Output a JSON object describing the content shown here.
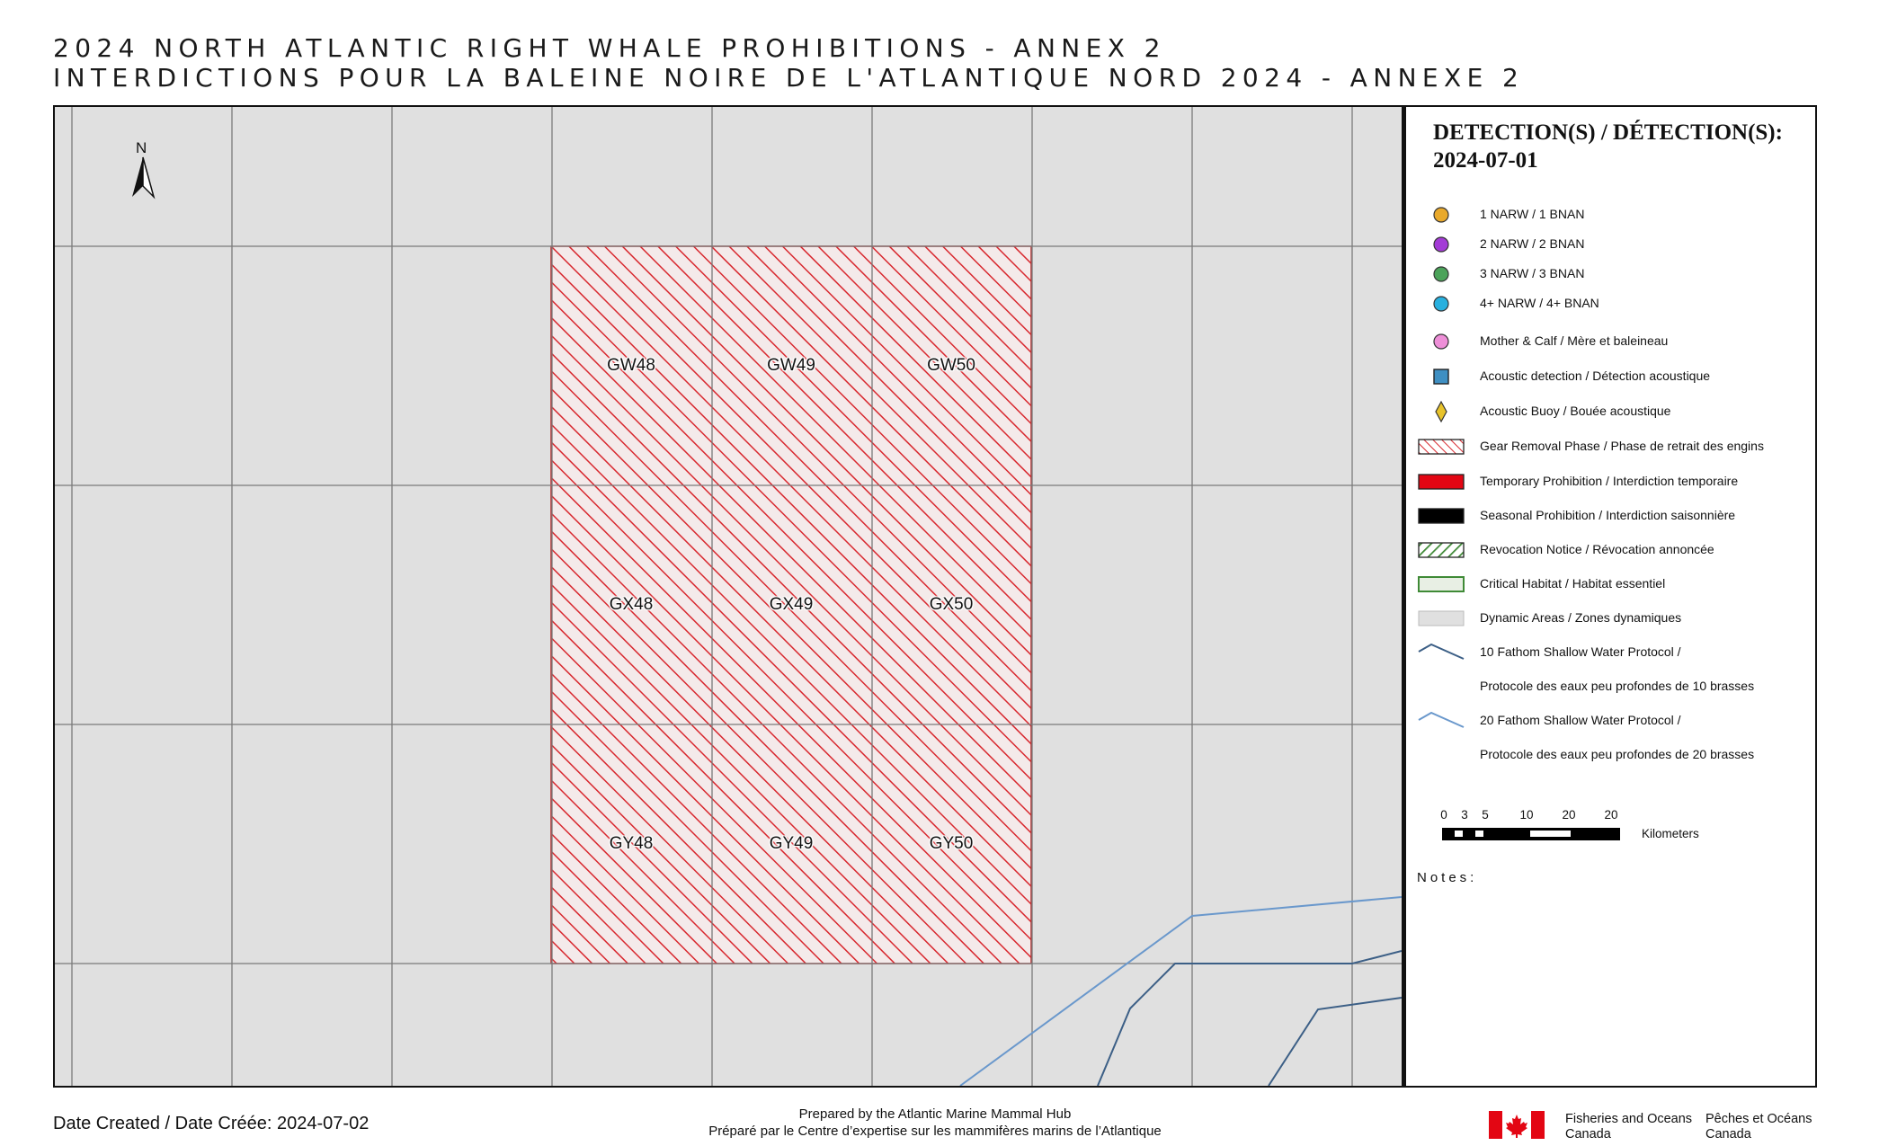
{
  "title": {
    "en": "2024 NORTH ATLANTIC RIGHT WHALE PROHIBITIONS - ANNEX 2",
    "fr": "INTERDICTIONS POUR LA BALEINE NOIRE DE L'ATLANTIQUE NORD 2024 - ANNEXE 2"
  },
  "map": {
    "north_label": "N",
    "grid_cells": [
      {
        "id": "GW48",
        "status": "gear-removal-phase"
      },
      {
        "id": "GW49",
        "status": "gear-removal-phase"
      },
      {
        "id": "GW50",
        "status": "gear-removal-phase"
      },
      {
        "id": "GX48",
        "status": "gear-removal-phase"
      },
      {
        "id": "GX49",
        "status": "gear-removal-phase"
      },
      {
        "id": "GX50",
        "status": "gear-removal-phase"
      },
      {
        "id": "GY48",
        "status": "gear-removal-phase"
      },
      {
        "id": "GY49",
        "status": "gear-removal-phase"
      },
      {
        "id": "GY50",
        "status": "gear-removal-phase"
      }
    ],
    "colors": {
      "background": "#e0e0e0",
      "grid_line": "#7a7a7a",
      "hatch_red": "#d8272e",
      "contour_10_fathom": "#3c5f86",
      "contour_20_fathom": "#6a98cc"
    }
  },
  "legend": {
    "title_line1": "DETECTION(S) / DÉTECTION(S):",
    "title_line2": "2024-07-01",
    "items": [
      {
        "label": "1 NARW / 1 BNAN",
        "symbol": "circle",
        "color": "#e9a92b"
      },
      {
        "label": "2 NARW / 2 BNAN",
        "symbol": "circle",
        "color": "#a33bd6"
      },
      {
        "label": "3 NARW / 3 BNAN",
        "symbol": "circle",
        "color": "#4ca35a"
      },
      {
        "label": "4+ NARW / 4+ BNAN",
        "symbol": "circle",
        "color": "#27b0df"
      },
      {
        "label": "Mother & Calf / Mère et baleineau",
        "symbol": "circle",
        "color": "#ee8fd8"
      },
      {
        "label": "Acoustic detection / Détection acoustique",
        "symbol": "square",
        "color": "#3f8fc2"
      },
      {
        "label": "Acoustic Buoy / Bouée acoustique",
        "symbol": "diamond",
        "color": "#e8c32a"
      },
      {
        "label": "Gear Removal Phase / Phase de retrait des engins",
        "symbol": "hatch-red",
        "color": "#d8272e"
      },
      {
        "label": "Temporary Prohibition / Interdiction temporaire",
        "symbol": "fill",
        "color": "#e30613"
      },
      {
        "label": "Seasonal Prohibition / Interdiction saisonnière",
        "symbol": "fill",
        "color": "#000000"
      },
      {
        "label": "Revocation Notice / Révocation annoncée",
        "symbol": "hatch-green",
        "color": "#3f8a36"
      },
      {
        "label": "Critical Habitat / Habitat essentiel",
        "symbol": "outline",
        "color": "#3f8a36"
      },
      {
        "label": "Dynamic Areas / Zones dynamiques",
        "symbol": "fill-light",
        "color": "#e0e0e0"
      },
      {
        "label": "10 Fathom Shallow Water Protocol /",
        "label_cont": "Protocole des eaux peu profondes de 10 brasses",
        "symbol": "line",
        "color": "#3c5f86"
      },
      {
        "label": "20 Fathom Shallow Water Protocol /",
        "label_cont": "Protocole des eaux peu profondes de 20 brasses",
        "symbol": "line",
        "color": "#6a98cc"
      }
    ],
    "scale": {
      "ticks": [
        "0",
        "3",
        "5",
        "10",
        "20",
        "20"
      ],
      "unit": "Kilometers"
    },
    "notes_label": "Notes:"
  },
  "footer": {
    "date_created": "Date Created / Date Créée: 2024-07-02",
    "prepared_en": "Prepared by the Atlantic Marine Mammal Hub",
    "prepared_fr": "Préparé par le Centre d’expertise sur les mammifères marins de l’Atlantique",
    "dfo_en_line1": "Fisheries and Oceans",
    "dfo_en_line2": "Canada",
    "dfo_fr_line1": "Pêches et Océans",
    "dfo_fr_line2": "Canada"
  }
}
